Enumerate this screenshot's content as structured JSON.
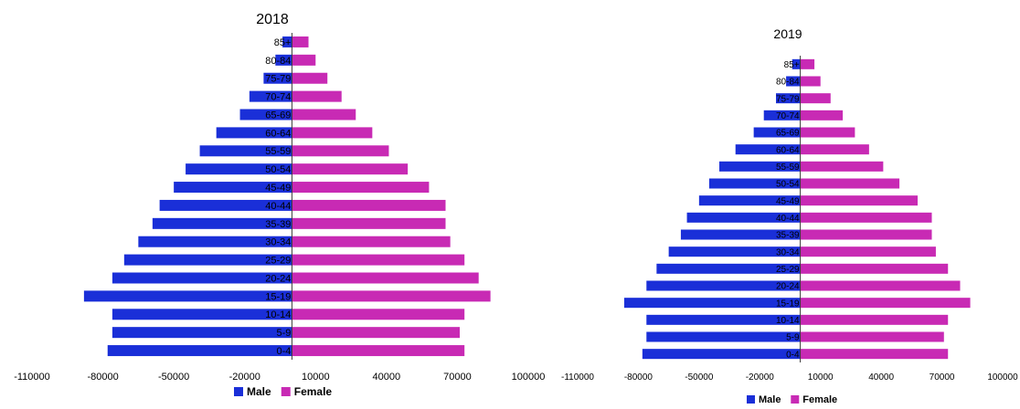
{
  "chart_data": [
    {
      "type": "bar",
      "title": "2018",
      "categories": [
        "0-4",
        "5-9",
        "10-14",
        "15-19",
        "20-24",
        "25-29",
        "30-34",
        "35-39",
        "40-44",
        "45-49",
        "50-54",
        "55-59",
        "60-64",
        "65-69",
        "70-74",
        "75-79",
        "80-84",
        "85+"
      ],
      "x_ticks": [
        "-110000",
        "-80000",
        "-50000",
        "-20000",
        "10000",
        "40000",
        "70000",
        "100000"
      ],
      "xlim": [
        -110000,
        100000
      ],
      "series": [
        {
          "name": "Male",
          "color": "#1a2fd8",
          "values": [
            -78000,
            -76000,
            -76000,
            -88000,
            -76000,
            -71000,
            -65000,
            -59000,
            -56000,
            -50000,
            -45000,
            -39000,
            -32000,
            -22000,
            -18000,
            -12000,
            -7000,
            -4000
          ]
        },
        {
          "name": "Female",
          "color": "#c82ab4",
          "values": [
            73000,
            71000,
            73000,
            84000,
            79000,
            73000,
            67000,
            65000,
            65000,
            58000,
            49000,
            41000,
            34000,
            27000,
            21000,
            15000,
            10000,
            7000
          ]
        }
      ],
      "legend": "bottom"
    },
    {
      "type": "bar",
      "title": "2019",
      "categories": [
        "0-4",
        "5-9",
        "10-14",
        "15-19",
        "20-24",
        "25-29",
        "30-34",
        "35-39",
        "40-44",
        "45-49",
        "50-54",
        "55-59",
        "60-64",
        "65-69",
        "70-74",
        "75-79",
        "80-84",
        "85+"
      ],
      "x_ticks": [
        "-110000",
        "-80000",
        "-50000",
        "-20000",
        "10000",
        "40000",
        "70000",
        "100000"
      ],
      "xlim": [
        -110000,
        100000
      ],
      "series": [
        {
          "name": "Male",
          "color": "#1a2fd8",
          "values": [
            -78000,
            -76000,
            -76000,
            -87000,
            -76000,
            -71000,
            -65000,
            -59000,
            -56000,
            -50000,
            -45000,
            -40000,
            -32000,
            -23000,
            -18000,
            -12000,
            -7000,
            -4000
          ]
        },
        {
          "name": "Female",
          "color": "#c82ab4",
          "values": [
            73000,
            71000,
            73000,
            84000,
            79000,
            73000,
            67000,
            65000,
            65000,
            58000,
            49000,
            41000,
            34000,
            27000,
            21000,
            15000,
            10000,
            7000
          ]
        }
      ],
      "legend": "bottom"
    }
  ]
}
